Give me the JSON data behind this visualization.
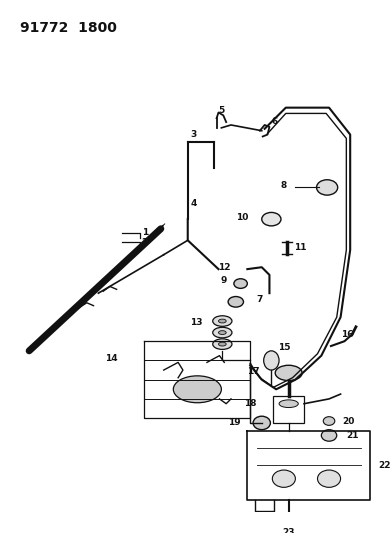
{
  "title": "91772  1800",
  "bg_color": "#ffffff",
  "line_color": "#111111",
  "text_color": "#111111",
  "fig_width": 3.92,
  "fig_height": 5.33,
  "dpi": 100,
  "label_fs": 6.5,
  "title_fs": 10
}
